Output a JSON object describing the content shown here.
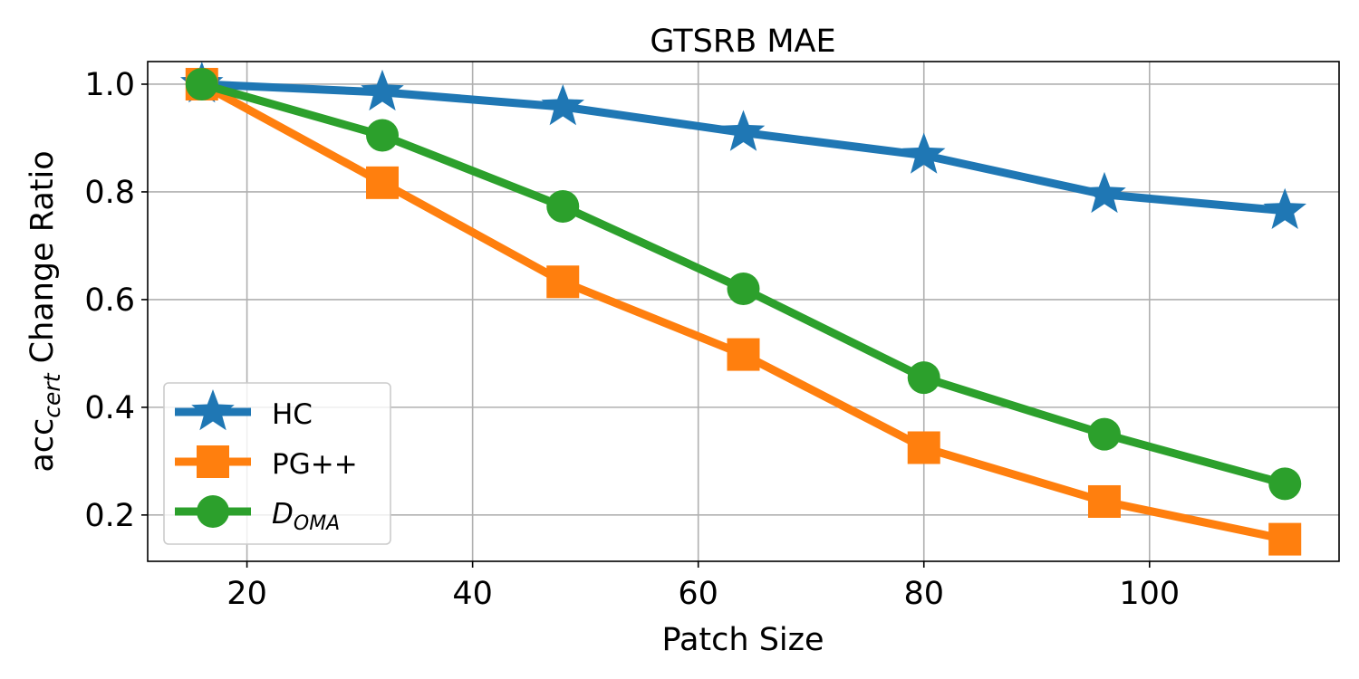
{
  "chart_data": {
    "type": "line",
    "title": "GTSRB MAE",
    "xlabel": "Patch Size",
    "ylabel": {
      "main": "acc",
      "sub": "cert",
      "rest": " Change Ratio"
    },
    "x": [
      16,
      32,
      48,
      64,
      80,
      96,
      112
    ],
    "xlim": [
      11.2,
      116.8
    ],
    "ylim": [
      0.114,
      1.042
    ],
    "xticks": [
      20,
      40,
      60,
      80,
      100
    ],
    "yticks": [
      0.2,
      0.4,
      0.6,
      0.8,
      1.0
    ],
    "xtick_labels": [
      "20",
      "40",
      "60",
      "80",
      "100"
    ],
    "ytick_labels": [
      "0.2",
      "0.4",
      "0.6",
      "0.8",
      "1.0"
    ],
    "grid": true,
    "legend_position": "lower-left",
    "series": [
      {
        "name": "HC",
        "marker": "star",
        "color": "#1f77b4",
        "values": [
          1.0,
          0.985,
          0.958,
          0.91,
          0.868,
          0.795,
          0.765
        ]
      },
      {
        "name": "PG++",
        "marker": "square",
        "color": "#ff7f0e",
        "values": [
          1.0,
          0.817,
          0.633,
          0.498,
          0.325,
          0.225,
          0.155
        ]
      },
      {
        "name": {
          "main": "D",
          "sub": "OMA"
        },
        "marker": "circle",
        "color": "#2ca02c",
        "values": [
          1.0,
          0.905,
          0.773,
          0.62,
          0.455,
          0.35,
          0.258
        ]
      }
    ]
  }
}
